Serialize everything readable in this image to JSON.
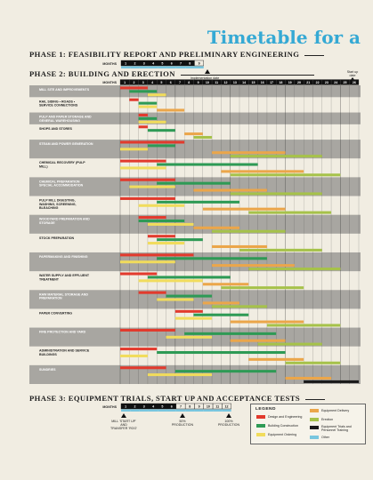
{
  "title": "Timetable for a",
  "phases": {
    "p1": "PHASE 1: FEASIBILITY REPORT AND PRELIMINARY ENGINEERING",
    "p2": "PHASE 2: BUILDING AND ERECTION",
    "p3": "PHASE 3: EQUIPMENT TRIALS, START UP AND ACCEPTANCE TESTS"
  },
  "months_label": "MONTHS",
  "phase1_months": [
    "1",
    "2",
    "3",
    "4",
    "5",
    "6",
    "7",
    "8",
    "9"
  ],
  "phase2_months": [
    "1",
    "2",
    "3",
    "4",
    "5",
    "6",
    "7",
    "8",
    "9",
    "10",
    "11",
    "12",
    "13",
    "14",
    "15",
    "16",
    "17",
    "18",
    "19",
    "20",
    "21",
    "22",
    "23",
    "24",
    "25",
    "26"
  ],
  "phase3_months": [
    "1",
    "2",
    "3",
    "4",
    "5",
    "6",
    "7",
    "8",
    "9",
    "10",
    "11",
    "12"
  ],
  "annotations": {
    "implementation": "Implementation date",
    "startup_l1": "Start up",
    "startup_l2": "date",
    "mill_l1": "MILL 'START UP'",
    "mill_l2": "AND",
    "mill_l3": "TRANSFER 'ROO'",
    "prod1_l1": "50%",
    "prod1_l2": "PRODUCTION",
    "prod2_l1": "100%",
    "prod2_l2": "PRODUCTION"
  },
  "colors": {
    "red": "#e23a2d",
    "green": "#2e9a55",
    "yellow": "#f1dc5c",
    "orange": "#eba64a",
    "lime": "#a6c24a",
    "black": "#1a1a1a",
    "blue": "#78c6df",
    "band": "#8c8b88"
  },
  "legend": {
    "title": "LEGEND",
    "items": [
      {
        "label": "Design and Engineering",
        "color": "red"
      },
      {
        "label": "Building Construction",
        "color": "green"
      },
      {
        "label": "Equipment Ordering",
        "color": "yellow"
      },
      {
        "label": "Equipment Delivery",
        "color": "orange"
      },
      {
        "label": "Erection",
        "color": "lime"
      },
      {
        "label": "Equipment Trials and Personnel Training",
        "color": "black"
      },
      {
        "label": "Other",
        "color": "blue"
      }
    ]
  },
  "chart_data": {
    "type": "bar",
    "xlabel": "MONTHS",
    "xlim": [
      0,
      26
    ],
    "groups": [
      {
        "name": "MILL SITE AND IMPROVEMENTS",
        "bars": [
          {
            "c": "red",
            "s": 0,
            "e": 3
          },
          {
            "c": "green",
            "s": 1,
            "e": 4
          },
          {
            "c": "yellow",
            "s": 3,
            "e": 5
          }
        ]
      },
      {
        "name": "RAIL SIDING • ROADS • SERVICE CONNECTIONS",
        "bars": [
          {
            "c": "red",
            "s": 1,
            "e": 2
          },
          {
            "c": "green",
            "s": 2,
            "e": 4
          },
          {
            "c": "yellow",
            "s": 2,
            "e": 4
          },
          {
            "c": "orange",
            "s": 4,
            "e": 7
          }
        ]
      },
      {
        "name": "PULP AND PAPER STORAGE AND GENERAL WAREHOUSING",
        "bars": [
          {
            "c": "red",
            "s": 2,
            "e": 3
          },
          {
            "c": "green",
            "s": 2,
            "e": 4
          },
          {
            "c": "yellow",
            "s": 2,
            "e": 5
          }
        ]
      },
      {
        "name": "SHOPS AND STORES",
        "bars": [
          {
            "c": "red",
            "s": 2,
            "e": 3
          },
          {
            "c": "green",
            "s": 3,
            "e": 6
          },
          {
            "c": "orange",
            "s": 7,
            "e": 9
          },
          {
            "c": "lime",
            "s": 8,
            "e": 10
          }
        ]
      },
      {
        "name": "STEAM AND POWER GENERATION",
        "bars": [
          {
            "c": "red",
            "s": 0,
            "e": 7
          },
          {
            "c": "green",
            "s": 3,
            "e": 6
          },
          {
            "c": "yellow",
            "s": 0,
            "e": 3
          },
          {
            "c": "orange",
            "s": 10,
            "e": 18
          },
          {
            "c": "lime",
            "s": 12,
            "e": 22
          }
        ]
      },
      {
        "name": "CHEMICAL RECOVERY (PULP MILL)",
        "bars": [
          {
            "c": "red",
            "s": 0,
            "e": 5
          },
          {
            "c": "green",
            "s": 4,
            "e": 15
          },
          {
            "c": "yellow",
            "s": 0,
            "e": 5
          },
          {
            "c": "orange",
            "s": 11,
            "e": 20
          },
          {
            "c": "lime",
            "s": 12,
            "e": 24
          }
        ]
      },
      {
        "name": "CHEMICAL PREPARATION SPECIAL ACCOMMODATION",
        "bars": [
          {
            "c": "red",
            "s": 0,
            "e": 6
          },
          {
            "c": "green",
            "s": 4,
            "e": 12
          },
          {
            "c": "yellow",
            "s": 1,
            "e": 6
          },
          {
            "c": "orange",
            "s": 8,
            "e": 16
          },
          {
            "c": "lime",
            "s": 12,
            "e": 22
          }
        ]
      },
      {
        "name": "PULP MILL DIGESTING, WASHING, SCREENING, BLEACHING",
        "bars": [
          {
            "c": "red",
            "s": 0,
            "e": 6
          },
          {
            "c": "green",
            "s": 4,
            "e": 13
          },
          {
            "c": "yellow",
            "s": 2,
            "e": 7
          },
          {
            "c": "orange",
            "s": 9,
            "e": 18
          },
          {
            "c": "lime",
            "s": 14,
            "e": 23
          }
        ]
      },
      {
        "name": "WOODYARD PREPARATION AND STORAGE",
        "bars": [
          {
            "c": "red",
            "s": 2,
            "e": 5
          },
          {
            "c": "green",
            "s": 2,
            "e": 7
          },
          {
            "c": "yellow",
            "s": 3,
            "e": 8
          },
          {
            "c": "orange",
            "s": 8,
            "e": 13
          },
          {
            "c": "lime",
            "s": 10,
            "e": 18
          }
        ]
      },
      {
        "name": "STOCK PREPARATION",
        "bars": [
          {
            "c": "red",
            "s": 3,
            "e": 6
          },
          {
            "c": "green",
            "s": 4,
            "e": 9
          },
          {
            "c": "yellow",
            "s": 3,
            "e": 7
          },
          {
            "c": "orange",
            "s": 10,
            "e": 16
          },
          {
            "c": "lime",
            "s": 13,
            "e": 22
          }
        ]
      },
      {
        "name": "PAPERMAKING AND FINISHING",
        "bars": [
          {
            "c": "red",
            "s": 0,
            "e": 8
          },
          {
            "c": "green",
            "s": 4,
            "e": 16
          },
          {
            "c": "yellow",
            "s": 0,
            "e": 6
          },
          {
            "c": "orange",
            "s": 10,
            "e": 19
          },
          {
            "c": "lime",
            "s": 14,
            "e": 24
          }
        ]
      },
      {
        "name": "WATER SUPPLY AND EFFLUENT TREATMENT",
        "bars": [
          {
            "c": "red",
            "s": 0,
            "e": 4
          },
          {
            "c": "green",
            "s": 3,
            "e": 12
          },
          {
            "c": "yellow",
            "s": 2,
            "e": 9
          },
          {
            "c": "orange",
            "s": 9,
            "e": 14
          },
          {
            "c": "lime",
            "s": 11,
            "e": 20
          }
        ]
      },
      {
        "name": "RAW MATERIAL STORAGE AND PREPARATION",
        "bars": [
          {
            "c": "red",
            "s": 2,
            "e": 5
          },
          {
            "c": "green",
            "s": 5,
            "e": 10
          },
          {
            "c": "yellow",
            "s": 4,
            "e": 8
          },
          {
            "c": "orange",
            "s": 9,
            "e": 13
          },
          {
            "c": "lime",
            "s": 10,
            "e": 16
          }
        ]
      },
      {
        "name": "PAPER CONVERTING",
        "bars": [
          {
            "c": "red",
            "s": 6,
            "e": 9
          },
          {
            "c": "green",
            "s": 8,
            "e": 14
          },
          {
            "c": "yellow",
            "s": 6,
            "e": 10
          },
          {
            "c": "orange",
            "s": 12,
            "e": 20
          },
          {
            "c": "lime",
            "s": 16,
            "e": 24
          }
        ]
      },
      {
        "name": "FIRE PROTECTION AND YARD",
        "bars": [
          {
            "c": "red",
            "s": 0,
            "e": 6
          },
          {
            "c": "green",
            "s": 7,
            "e": 17
          },
          {
            "c": "yellow",
            "s": 5,
            "e": 10
          },
          {
            "c": "orange",
            "s": 12,
            "e": 18
          },
          {
            "c": "lime",
            "s": 15,
            "e": 22
          }
        ]
      },
      {
        "name": "ADMINISTRATION AND SERVICE BUILDINGS",
        "bars": [
          {
            "c": "red",
            "s": 0,
            "e": 4
          },
          {
            "c": "green",
            "s": 4,
            "e": 18
          },
          {
            "c": "yellow",
            "s": 0,
            "e": 3
          },
          {
            "c": "orange",
            "s": 14,
            "e": 20
          },
          {
            "c": "lime",
            "s": 18,
            "e": 24
          }
        ]
      },
      {
        "name": "SUNDRIES",
        "bars": [
          {
            "c": "red",
            "s": 0,
            "e": 5
          },
          {
            "c": "green",
            "s": 6,
            "e": 17
          },
          {
            "c": "yellow",
            "s": 3,
            "e": 10
          },
          {
            "c": "orange",
            "s": 18,
            "e": 23
          },
          {
            "c": "black",
            "s": 20,
            "e": 26
          }
        ]
      }
    ]
  }
}
